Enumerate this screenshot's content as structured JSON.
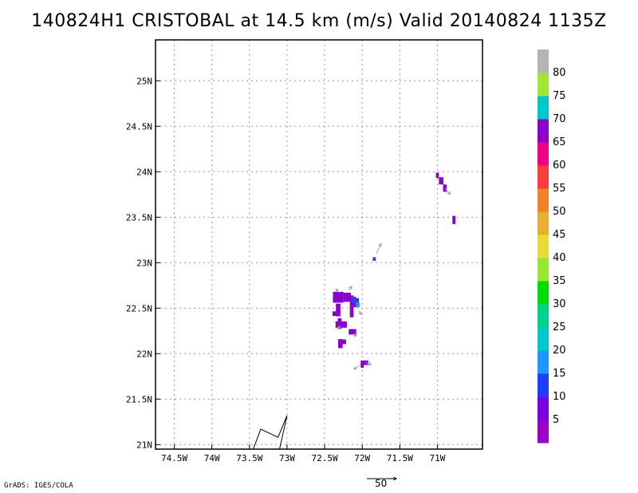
{
  "title": "140824H1 CRISTOBAL at 14.5 km (m/s) Valid 20140824 1135Z",
  "credit": "GrADS: IGES/COLA",
  "reference_vector": {
    "label": "50",
    "magnitude": 50
  },
  "map": {
    "lon_range": [
      -74.75,
      -70.4
    ],
    "lat_range": [
      20.95,
      25.45
    ],
    "lon_ticks": [
      {
        "value": -74.5,
        "label": "74.5W"
      },
      {
        "value": -74.0,
        "label": "74W"
      },
      {
        "value": -73.5,
        "label": "73.5W"
      },
      {
        "value": -73.0,
        "label": "73W"
      },
      {
        "value": -72.5,
        "label": "72.5W"
      },
      {
        "value": -72.0,
        "label": "72W"
      },
      {
        "value": -71.5,
        "label": "71.5W"
      },
      {
        "value": -71.0,
        "label": "71W"
      }
    ],
    "lat_ticks": [
      {
        "value": 21.0,
        "label": "21N"
      },
      {
        "value": 21.5,
        "label": "21.5N"
      },
      {
        "value": 22.0,
        "label": "22N"
      },
      {
        "value": 22.5,
        "label": "22.5N"
      },
      {
        "value": 23.0,
        "label": "23N"
      },
      {
        "value": 23.5,
        "label": "23.5N"
      },
      {
        "value": 24.0,
        "label": "24N"
      },
      {
        "value": 24.5,
        "label": "24.5N"
      },
      {
        "value": 25.0,
        "label": "25N"
      }
    ],
    "grid": true,
    "coastline": [
      [
        -73.45,
        20.95
      ],
      [
        -73.35,
        21.17
      ],
      [
        -73.12,
        21.08
      ],
      [
        -73.0,
        21.32
      ],
      [
        -73.1,
        20.95
      ]
    ],
    "wind_cells": [
      {
        "lon": -72.32,
        "lat": 22.62,
        "w": 0.14,
        "h": 0.12,
        "color": "#8a00cc"
      },
      {
        "lon": -72.2,
        "lat": 22.62,
        "w": 0.1,
        "h": 0.1,
        "color": "#8a00cc"
      },
      {
        "lon": -72.32,
        "lat": 22.48,
        "w": 0.06,
        "h": 0.14,
        "color": "#8a00cc"
      },
      {
        "lon": -72.37,
        "lat": 22.44,
        "w": 0.05,
        "h": 0.05,
        "color": "#8a00cc"
      },
      {
        "lon": -72.3,
        "lat": 22.33,
        "w": 0.05,
        "h": 0.12,
        "color": "#8a00cc"
      },
      {
        "lon": -72.28,
        "lat": 22.32,
        "w": 0.15,
        "h": 0.07,
        "color": "#8a00cc"
      },
      {
        "lon": -72.14,
        "lat": 22.52,
        "w": 0.05,
        "h": 0.24,
        "color": "#8a00cc"
      },
      {
        "lon": -72.08,
        "lat": 22.56,
        "w": 0.07,
        "h": 0.1,
        "color": "#8a00cc"
      },
      {
        "lon": -72.13,
        "lat": 22.24,
        "w": 0.1,
        "h": 0.06,
        "color": "#8a00cc"
      },
      {
        "lon": -72.29,
        "lat": 22.11,
        "w": 0.06,
        "h": 0.1,
        "color": "#8a00cc"
      },
      {
        "lon": -72.24,
        "lat": 22.13,
        "w": 0.05,
        "h": 0.05,
        "color": "#8a00cc"
      },
      {
        "lon": -72.11,
        "lat": 22.59,
        "w": 0.06,
        "h": 0.07,
        "color": "#2244ff"
      },
      {
        "lon": -72.06,
        "lat": 22.54,
        "w": 0.05,
        "h": 0.06,
        "color": "#1e90ff"
      },
      {
        "lon": -71.97,
        "lat": 21.9,
        "w": 0.1,
        "h": 0.05,
        "color": "#8a00cc"
      },
      {
        "lon": -72.0,
        "lat": 21.87,
        "w": 0.04,
        "h": 0.05,
        "color": "#8a00cc"
      },
      {
        "lon": -71.84,
        "lat": 23.04,
        "w": 0.04,
        "h": 0.04,
        "color": "#2244ff"
      },
      {
        "lon": -71.0,
        "lat": 23.96,
        "w": 0.04,
        "h": 0.06,
        "color": "#8a00cc"
      },
      {
        "lon": -70.95,
        "lat": 23.9,
        "w": 0.06,
        "h": 0.08,
        "color": "#8a00cc"
      },
      {
        "lon": -70.9,
        "lat": 23.82,
        "w": 0.05,
        "h": 0.08,
        "color": "#8a00cc"
      },
      {
        "lon": -70.78,
        "lat": 23.47,
        "w": 0.04,
        "h": 0.09,
        "color": "#8a00cc"
      }
    ],
    "wind_vectors": [
      {
        "lon": -72.3,
        "lat": 22.67,
        "u": -0.05,
        "v": 0.04
      },
      {
        "lon": -72.18,
        "lat": 22.69,
        "u": 0.04,
        "v": 0.05
      },
      {
        "lon": -72.05,
        "lat": 22.47,
        "u": 0.04,
        "v": -0.04
      },
      {
        "lon": -72.28,
        "lat": 22.3,
        "u": -0.05,
        "v": -0.02
      },
      {
        "lon": -72.12,
        "lat": 22.2,
        "u": 0.05,
        "v": 0.0
      },
      {
        "lon": -72.03,
        "lat": 21.87,
        "u": -0.08,
        "v": -0.04
      },
      {
        "lon": -71.95,
        "lat": 21.9,
        "u": 0.07,
        "v": -0.02
      },
      {
        "lon": -71.81,
        "lat": 23.1,
        "u": 0.06,
        "v": 0.11
      },
      {
        "lon": -70.9,
        "lat": 23.82,
        "u": 0.07,
        "v": -0.07
      }
    ]
  },
  "colorbar": {
    "colors": [
      "#9a00c8",
      "#7a00e0",
      "#1e3cff",
      "#1e96ff",
      "#00c8c8",
      "#00d28c",
      "#00dc00",
      "#96e632",
      "#e6dc32",
      "#e6af2d",
      "#f08228",
      "#fa3c3c",
      "#f00082",
      "#8c00c8",
      "#00c8c8",
      "#a0e632",
      "#b4b4b4"
    ],
    "labels": [
      "5",
      "10",
      "15",
      "20",
      "25",
      "30",
      "35",
      "40",
      "45",
      "50",
      "55",
      "60",
      "65",
      "70",
      "75",
      "80"
    ]
  }
}
